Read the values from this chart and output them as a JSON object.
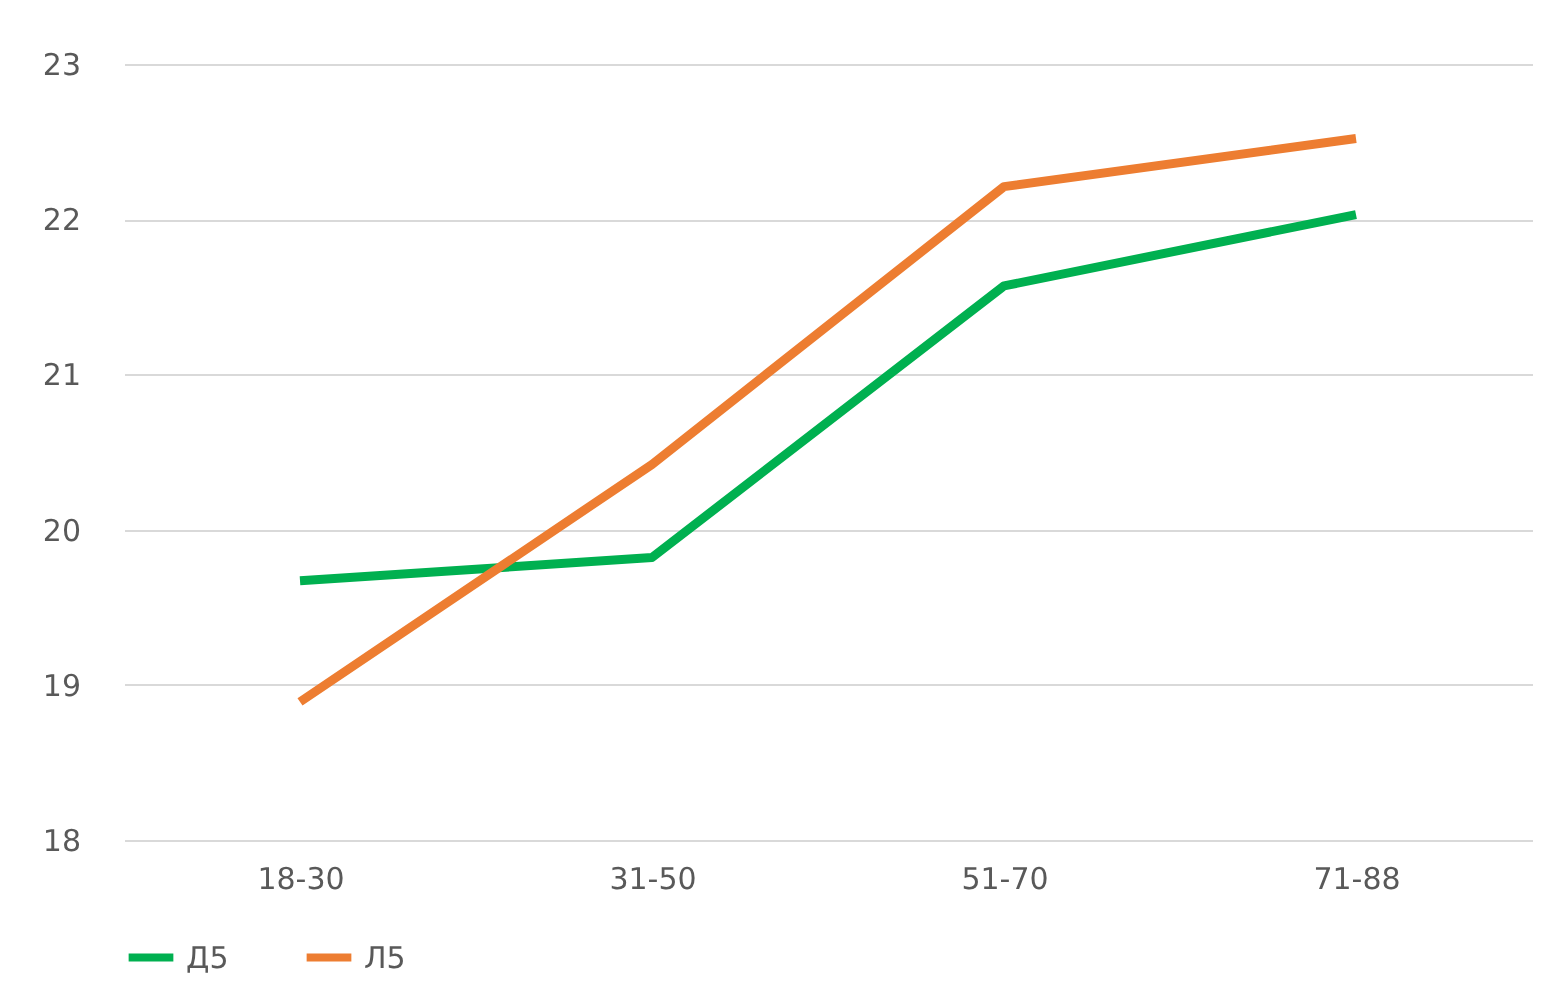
{
  "chart_data": {
    "type": "line",
    "categories": [
      "18-30",
      "31-50",
      "51-70",
      "71-88"
    ],
    "series": [
      {
        "name": "Д5",
        "color": "#00b050",
        "values": [
          19.67,
          19.82,
          21.57,
          22.03
        ]
      },
      {
        "name": "Л5",
        "color": "#ed7d31",
        "values": [
          18.89,
          20.42,
          22.21,
          22.52
        ]
      }
    ],
    "ylim": [
      18,
      23
    ],
    "yticks": [
      18,
      19,
      20,
      21,
      22,
      23
    ],
    "grid": "y",
    "legend": "bottom",
    "marker": "none",
    "line_style": "solid"
  }
}
